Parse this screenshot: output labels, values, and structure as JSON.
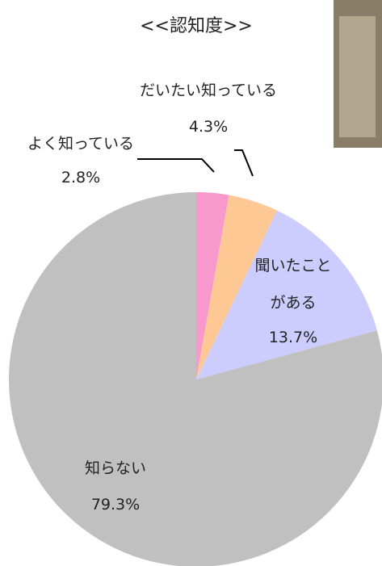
{
  "chart_data": {
    "type": "pie",
    "title": "<<認知度>>",
    "categories": [
      "よく知っている",
      "だいたい知っている",
      "聞いたことがある",
      "知らない"
    ],
    "values": [
      2.8,
      4.3,
      13.7,
      79.3
    ],
    "value_labels": [
      "2.8%",
      "4.3%",
      "13.7%",
      "79.3%"
    ],
    "colors": [
      "#f799cc",
      "#fdc894",
      "#ccccff",
      "#c0c0c0"
    ]
  }
}
